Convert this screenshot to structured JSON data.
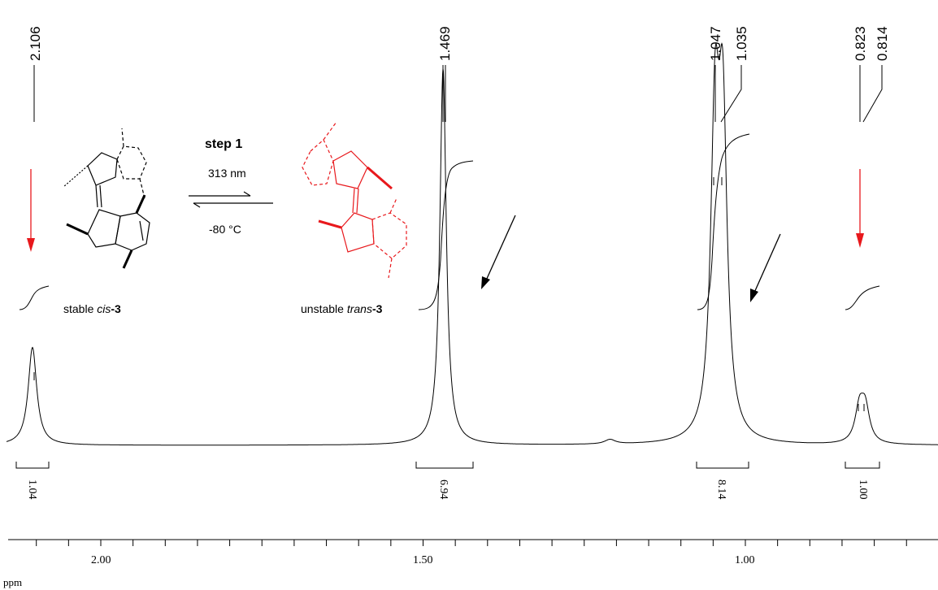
{
  "chart_data": {
    "type": "line",
    "xlabel": "ppm",
    "xlim": [
      2.25,
      0.6
    ],
    "x_ticks": [
      {
        "value": 2.0,
        "label": "2.00"
      },
      {
        "value": 1.5,
        "label": "1.50"
      },
      {
        "value": 1.0,
        "label": "1.00"
      }
    ],
    "peak_labels": [
      "2.106",
      "1.469",
      "1.047",
      "1.035",
      "0.823",
      "0.814"
    ],
    "peaks": [
      {
        "ppm": 2.106,
        "label": "2.106",
        "intensity": 0.26
      },
      {
        "ppm": 1.469,
        "label": "1.469",
        "intensity": 1.0
      },
      {
        "ppm": 1.047,
        "label": "1.047",
        "intensity": 0.8
      },
      {
        "ppm": 1.035,
        "label": "1.035",
        "intensity": 0.8
      },
      {
        "ppm": 0.823,
        "label": "0.823",
        "intensity": 0.09
      },
      {
        "ppm": 0.814,
        "label": "0.814",
        "intensity": 0.09
      }
    ],
    "integrals": [
      {
        "from": 2.13,
        "to": 2.085,
        "value": "1.04"
      },
      {
        "from": 1.53,
        "to": 1.44,
        "value": "6.94"
      },
      {
        "from": 1.09,
        "to": 1.01,
        "value": "8.14"
      },
      {
        "from": 0.86,
        "to": 0.77,
        "value": "1.00"
      }
    ]
  },
  "scheme": {
    "step_label": "step 1",
    "wavelength": "313 nm",
    "temperature": "-80 °C",
    "left_compound_prefix": "stable ",
    "left_compound_italic": "cis",
    "left_compound_suffix": "-3",
    "right_compound_prefix": "unstable ",
    "right_compound_italic": "trans",
    "right_compound_suffix": "-3"
  },
  "colors": {
    "spectrum": "#000000",
    "highlight": "#e8181c"
  }
}
